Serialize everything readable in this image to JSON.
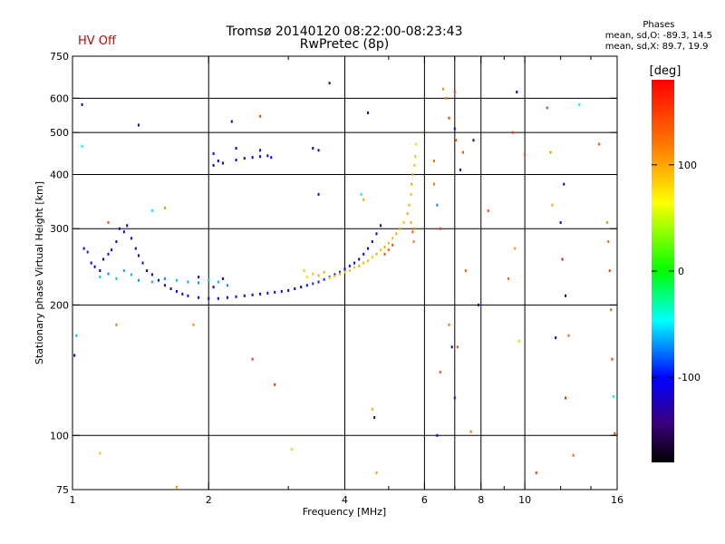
{
  "header": {
    "title": "Tromsø 20140120 08:22:00-08:23:43",
    "subtitle": "RwPretec (8p)",
    "status": "HV Off"
  },
  "stats": {
    "heading": "Phases",
    "line_o": "mean, sd,O: -89.3, 14.5",
    "line_x": "mean, sd,X:  89.7, 19.9"
  },
  "colorbar": {
    "label": "[deg]",
    "ticks": [
      {
        "value": 100,
        "label": "100"
      },
      {
        "value": 0,
        "label": "0"
      },
      {
        "value": -100,
        "label": "-100"
      }
    ],
    "range": [
      -180,
      180
    ]
  },
  "chart_data": {
    "type": "scatter",
    "xlabel": "Frequency [MHz]",
    "ylabel": "Stationary phase Virtual Height [km]",
    "x_scale": "log",
    "y_scale": "log",
    "xlim": [
      1,
      16
    ],
    "ylim": [
      75,
      750
    ],
    "x_ticks": [
      {
        "value": 1,
        "label": "1"
      },
      {
        "value": 2,
        "label": "2"
      },
      {
        "value": 4,
        "label": "4"
      },
      {
        "value": 6,
        "label": "6"
      },
      {
        "value": 8,
        "label": "8"
      },
      {
        "value": 10,
        "label": "10"
      },
      {
        "value": 16,
        "label": "16"
      }
    ],
    "x_minor": [
      3,
      5,
      7,
      9,
      12,
      14
    ],
    "y_ticks": [
      {
        "value": 75,
        "label": "75"
      },
      {
        "value": 100,
        "label": "100"
      },
      {
        "value": 200,
        "label": "200"
      },
      {
        "value": 300,
        "label": "300"
      },
      {
        "value": 400,
        "label": "400"
      },
      {
        "value": 500,
        "label": "500"
      },
      {
        "value": 600,
        "label": "600"
      },
      {
        "value": 750,
        "label": "750"
      }
    ],
    "x_grid": [
      2,
      4,
      6,
      7,
      8,
      10
    ],
    "y_grid": [
      100,
      200,
      300,
      400,
      500,
      600
    ],
    "grid": true,
    "color_scale": "phase in degrees, rainbow -180 (black) to 180 (red)",
    "series": [
      {
        "points": [
          [
            1.06,
            270,
            -110
          ],
          [
            1.08,
            265,
            -90
          ],
          [
            1.1,
            250,
            -100
          ],
          [
            1.12,
            245,
            -100
          ],
          [
            1.15,
            240,
            -100
          ],
          [
            1.17,
            255,
            -110
          ],
          [
            1.2,
            262,
            -105
          ],
          [
            1.22,
            268,
            -100
          ],
          [
            1.25,
            280,
            -110
          ],
          [
            1.27,
            300,
            -105
          ],
          [
            1.3,
            295,
            -100
          ],
          [
            1.32,
            305,
            -110
          ],
          [
            1.35,
            285,
            -100
          ],
          [
            1.38,
            270,
            -105
          ],
          [
            1.4,
            260,
            -100
          ],
          [
            1.43,
            250,
            -110
          ],
          [
            1.46,
            240,
            -100
          ],
          [
            1.5,
            235,
            -105
          ],
          [
            1.55,
            228,
            -100
          ],
          [
            1.6,
            222,
            -110
          ],
          [
            1.65,
            218,
            -105
          ],
          [
            1.7,
            215,
            -100
          ],
          [
            1.75,
            212,
            -110
          ],
          [
            1.8,
            210,
            -100
          ],
          [
            1.9,
            208,
            -105
          ],
          [
            2.0,
            207,
            -110
          ],
          [
            2.1,
            207,
            -100
          ],
          [
            2.2,
            208,
            -105
          ],
          [
            2.3,
            209,
            -110
          ],
          [
            2.4,
            210,
            -100
          ],
          [
            2.5,
            211,
            -105
          ],
          [
            2.6,
            212,
            -100
          ],
          [
            2.7,
            213,
            -110
          ],
          [
            2.8,
            214,
            -100
          ],
          [
            2.9,
            215,
            -105
          ],
          [
            3.0,
            216,
            -100
          ],
          [
            3.1,
            218,
            -105
          ],
          [
            3.2,
            220,
            -100
          ],
          [
            3.3,
            222,
            -95
          ],
          [
            3.4,
            224,
            -90
          ],
          [
            3.5,
            226,
            -95
          ],
          [
            3.6,
            229,
            -90
          ],
          [
            3.7,
            232,
            -95
          ],
          [
            3.8,
            235,
            -100
          ],
          [
            3.9,
            238,
            -95
          ],
          [
            4.0,
            242,
            -100
          ],
          [
            4.1,
            246,
            -95
          ],
          [
            4.2,
            250,
            -100
          ],
          [
            4.3,
            255,
            -105
          ],
          [
            4.4,
            262,
            -100
          ],
          [
            4.5,
            270,
            -105
          ],
          [
            4.6,
            280,
            -100
          ],
          [
            4.7,
            292,
            -105
          ],
          [
            4.8,
            305,
            -110
          ],
          [
            1.15,
            232,
            -60
          ],
          [
            1.2,
            236,
            -70
          ],
          [
            1.25,
            230,
            -60
          ],
          [
            1.3,
            240,
            -65
          ],
          [
            1.35,
            235,
            -60
          ],
          [
            1.4,
            228,
            -70
          ],
          [
            1.5,
            226,
            -60
          ],
          [
            1.6,
            230,
            -70
          ],
          [
            1.7,
            228,
            -60
          ],
          [
            1.8,
            226,
            -65
          ],
          [
            1.9,
            225,
            -70
          ],
          [
            2.0,
            228,
            -60
          ],
          [
            2.1,
            226,
            -65
          ],
          [
            2.2,
            222,
            -70
          ],
          [
            1.9,
            232,
            -110
          ],
          [
            2.05,
            220,
            -100
          ],
          [
            2.15,
            230,
            -110
          ],
          [
            2.05,
            420,
            -110
          ],
          [
            2.1,
            430,
            -105
          ],
          [
            2.15,
            425,
            -110
          ],
          [
            2.3,
            432,
            -100
          ],
          [
            2.4,
            436,
            -110
          ],
          [
            2.5,
            438,
            -105
          ],
          [
            2.6,
            440,
            -100
          ],
          [
            2.7,
            442,
            -110
          ],
          [
            2.75,
            438,
            -105
          ],
          [
            2.3,
            460,
            -110
          ],
          [
            2.6,
            455,
            -100
          ],
          [
            3.4,
            460,
            -110
          ],
          [
            3.5,
            455,
            -105
          ],
          [
            2.05,
            447,
            -100
          ]
        ]
      },
      {
        "points": [
          [
            3.3,
            232,
            80
          ],
          [
            3.4,
            236,
            90
          ],
          [
            3.5,
            234,
            100
          ],
          [
            3.6,
            238,
            95
          ],
          [
            3.7,
            231,
            90
          ],
          [
            3.8,
            233,
            85
          ],
          [
            3.9,
            236,
            100
          ],
          [
            4.0,
            238,
            95
          ],
          [
            4.1,
            240,
            90
          ],
          [
            4.2,
            244,
            85
          ],
          [
            4.3,
            246,
            100
          ],
          [
            4.4,
            250,
            95
          ],
          [
            4.5,
            253,
            90
          ],
          [
            4.6,
            258,
            85
          ],
          [
            4.7,
            262,
            95
          ],
          [
            4.8,
            268,
            90
          ],
          [
            4.9,
            272,
            100
          ],
          [
            5.0,
            278,
            95
          ],
          [
            5.1,
            285,
            90
          ],
          [
            5.2,
            292,
            100
          ],
          [
            5.3,
            300,
            95
          ],
          [
            5.4,
            310,
            90
          ],
          [
            5.5,
            325,
            100
          ],
          [
            5.55,
            340,
            95
          ],
          [
            5.6,
            360,
            90
          ],
          [
            5.62,
            380,
            100
          ],
          [
            5.65,
            400,
            95
          ],
          [
            5.7,
            420,
            90
          ],
          [
            5.72,
            440,
            85
          ],
          [
            5.75,
            470,
            80
          ],
          [
            5.7,
            300,
            110
          ],
          [
            5.68,
            280,
            120
          ],
          [
            5.6,
            310,
            100
          ],
          [
            5.65,
            295,
            140
          ],
          [
            4.9,
            262,
            140
          ],
          [
            5.0,
            268,
            130
          ],
          [
            5.1,
            275,
            140
          ],
          [
            3.25,
            240,
            90
          ]
        ]
      },
      {
        "points": [
          [
            1.05,
            580,
            -110
          ],
          [
            1.05,
            465,
            -50
          ],
          [
            1.02,
            170,
            -60
          ],
          [
            1.01,
            153,
            -100
          ],
          [
            1.15,
            91,
            90
          ],
          [
            1.2,
            310,
            140
          ],
          [
            1.25,
            180,
            120
          ],
          [
            1.4,
            520,
            -120
          ],
          [
            1.5,
            330,
            -50
          ],
          [
            1.6,
            335,
            110
          ],
          [
            1.7,
            76,
            110
          ],
          [
            1.85,
            180,
            110
          ],
          [
            2.25,
            530,
            -120
          ],
          [
            2.5,
            150,
            150
          ],
          [
            2.6,
            545,
            150
          ],
          [
            2.8,
            131,
            160
          ],
          [
            3.05,
            93,
            40
          ],
          [
            3.5,
            360,
            -120
          ],
          [
            3.7,
            650,
            -130
          ],
          [
            4.35,
            360,
            -50
          ],
          [
            4.5,
            555,
            -110
          ],
          [
            4.6,
            115,
            100
          ],
          [
            4.65,
            110,
            -120
          ],
          [
            4.7,
            82,
            100
          ],
          [
            4.4,
            350,
            100
          ],
          [
            6.3,
            430,
            120
          ],
          [
            6.3,
            380,
            120
          ],
          [
            6.4,
            100,
            -110
          ],
          [
            6.5,
            140,
            140
          ],
          [
            6.6,
            630,
            110
          ],
          [
            6.7,
            600,
            120
          ],
          [
            6.8,
            180,
            120
          ],
          [
            6.9,
            160,
            -120
          ],
          [
            7.0,
            122,
            -110
          ],
          [
            7.0,
            620,
            150
          ],
          [
            7.1,
            160,
            140
          ],
          [
            7.2,
            410,
            -110
          ],
          [
            7.3,
            450,
            140
          ],
          [
            7.4,
            240,
            130
          ],
          [
            7.6,
            102,
            120
          ],
          [
            7.7,
            480,
            -120
          ],
          [
            7.9,
            200,
            -120
          ],
          [
            8.3,
            330,
            140
          ],
          [
            9.2,
            230,
            130
          ],
          [
            9.4,
            500,
            150
          ],
          [
            9.5,
            270,
            100
          ],
          [
            9.6,
            620,
            -110
          ],
          [
            9.7,
            165,
            40
          ],
          [
            10.0,
            445,
            150
          ],
          [
            10.6,
            82,
            150
          ],
          [
            11.2,
            570,
            150
          ],
          [
            11.4,
            450,
            110
          ],
          [
            11.5,
            340,
            100
          ],
          [
            11.7,
            168,
            -110
          ],
          [
            12.0,
            310,
            -120
          ],
          [
            12.3,
            210,
            -110
          ],
          [
            12.3,
            122,
            160
          ],
          [
            12.5,
            170,
            130
          ],
          [
            12.8,
            90,
            130
          ],
          [
            13.2,
            580,
            -50
          ],
          [
            14.6,
            470,
            140
          ],
          [
            15.2,
            310,
            110
          ],
          [
            15.3,
            280,
            130
          ],
          [
            15.4,
            240,
            150
          ],
          [
            15.5,
            195,
            130
          ],
          [
            15.6,
            150,
            150
          ],
          [
            15.7,
            123,
            -50
          ],
          [
            15.8,
            101,
            150
          ],
          [
            6.4,
            340,
            -70
          ],
          [
            6.5,
            300,
            150
          ],
          [
            6.8,
            540,
            150
          ],
          [
            7.0,
            510,
            -110
          ],
          [
            7.05,
            480,
            140
          ],
          [
            12.2,
            380,
            -110
          ],
          [
            12.1,
            255,
            170
          ]
        ]
      }
    ]
  }
}
